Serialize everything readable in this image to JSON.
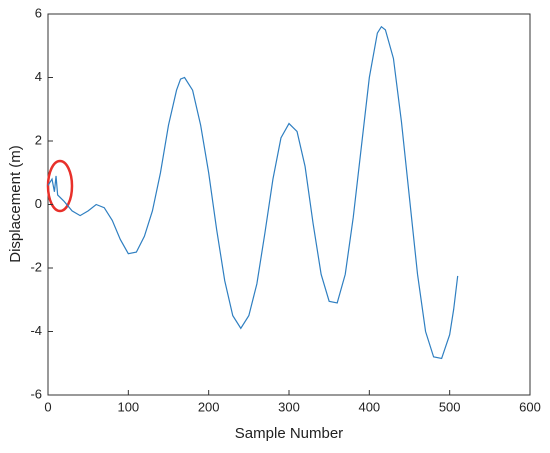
{
  "chart_data": {
    "type": "line",
    "xlabel": "Sample Number",
    "ylabel": "Displacement (m)",
    "x": [
      0,
      5,
      8,
      10,
      12,
      20,
      30,
      40,
      50,
      60,
      70,
      80,
      90,
      100,
      110,
      120,
      130,
      140,
      150,
      160,
      165,
      170,
      180,
      190,
      200,
      210,
      220,
      230,
      240,
      250,
      260,
      270,
      280,
      290,
      300,
      310,
      320,
      330,
      340,
      350,
      360,
      370,
      380,
      390,
      400,
      410,
      415,
      420,
      430,
      440,
      450,
      460,
      470,
      480,
      490,
      500,
      505,
      510
    ],
    "series": [
      {
        "color": "#2f7fc1",
        "values": [
          0.6,
          0.8,
          0.4,
          0.9,
          0.3,
          0.1,
          -0.2,
          -0.35,
          -0.2,
          0.0,
          -0.1,
          -0.5,
          -1.1,
          -1.55,
          -1.5,
          -1.0,
          -0.2,
          1.0,
          2.5,
          3.6,
          3.95,
          4.0,
          3.6,
          2.5,
          1.0,
          -0.8,
          -2.4,
          -3.5,
          -3.9,
          -3.5,
          -2.5,
          -0.9,
          0.8,
          2.1,
          2.55,
          2.3,
          1.2,
          -0.6,
          -2.2,
          -3.05,
          -3.1,
          -2.2,
          -0.4,
          1.8,
          4.0,
          5.4,
          5.6,
          5.5,
          4.6,
          2.6,
          0.2,
          -2.2,
          -4.0,
          -4.8,
          -4.85,
          -4.1,
          -3.3,
          -2.25
        ]
      }
    ],
    "xlim": [
      0,
      600
    ],
    "xticks": [
      0,
      100,
      200,
      300,
      400,
      500,
      600
    ],
    "ylim": [
      -6,
      6
    ],
    "yticks": [
      -6,
      -4,
      -2,
      0,
      2,
      4,
      6
    ]
  }
}
